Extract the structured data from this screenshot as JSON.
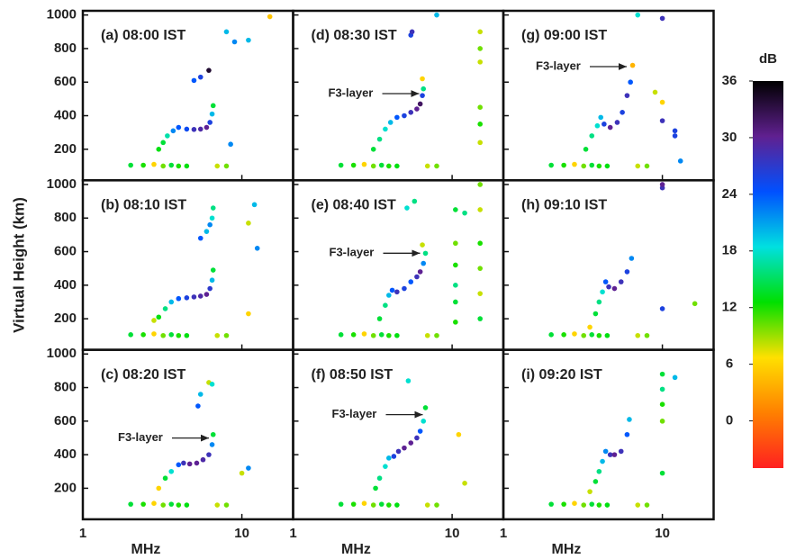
{
  "colorbar": {
    "label": "dB",
    "clim": [
      -5,
      36
    ],
    "ticks": [
      0,
      6,
      12,
      18,
      24,
      30,
      36
    ],
    "colors": [
      "#ff2020",
      "#ff8000",
      "#ffe000",
      "#00e000",
      "#00e0e0",
      "#0050ff",
      "#602090",
      "#000000"
    ]
  },
  "chart_data": [
    {
      "type": "scatter",
      "title": "(a) 08:00 IST",
      "xscale": "log",
      "xlim": [
        1,
        21
      ],
      "xticks": [
        1,
        10
      ],
      "ylim": [
        15,
        1025
      ],
      "yticks": [
        200,
        400,
        600,
        800,
        1000
      ],
      "x": [
        2,
        2.4,
        2.8,
        3.2,
        3.6,
        4,
        4.5,
        7,
        8,
        3,
        3.2,
        3.4,
        3.7,
        4,
        4.5,
        5,
        5.5,
        6,
        6.3,
        6.5,
        6.6,
        5,
        5.5,
        6.2,
        8,
        9,
        11,
        8.5,
        15
      ],
      "y": [
        105,
        105,
        110,
        100,
        105,
        100,
        100,
        100,
        100,
        200,
        240,
        280,
        310,
        330,
        320,
        318,
        320,
        330,
        360,
        410,
        460,
        610,
        630,
        670,
        900,
        840,
        850,
        230,
        990
      ],
      "db": [
        14,
        12,
        6,
        10,
        14,
        12,
        13,
        8,
        10,
        13,
        14,
        17,
        22,
        24,
        25,
        28,
        29,
        30,
        26,
        20,
        14,
        24,
        26,
        34,
        20,
        22,
        20,
        22,
        5
      ]
    },
    {
      "type": "scatter",
      "title": "(b) 08:10 IST",
      "ylabel": "Virtual Height (km)",
      "xscale": "log",
      "xlim": [
        1,
        21
      ],
      "xticks": [
        1,
        10
      ],
      "ylim": [
        15,
        1025
      ],
      "yticks": [
        200,
        400,
        600,
        800,
        1000
      ],
      "x": [
        2,
        2.4,
        2.8,
        3.2,
        3.6,
        4,
        4.5,
        7,
        8,
        2.8,
        3,
        3.3,
        3.6,
        4,
        4.5,
        5,
        5.5,
        6,
        6.3,
        6.5,
        6.6,
        5.5,
        6,
        6.3,
        6.5,
        6.6,
        12,
        12.5,
        11,
        11
      ],
      "y": [
        105,
        105,
        110,
        100,
        105,
        100,
        100,
        100,
        100,
        190,
        210,
        260,
        300,
        320,
        325,
        330,
        335,
        345,
        380,
        430,
        490,
        680,
        720,
        760,
        800,
        860,
        880,
        620,
        770,
        230
      ],
      "db": [
        14,
        12,
        6,
        10,
        14,
        12,
        13,
        8,
        10,
        8,
        13,
        16,
        20,
        24,
        26,
        28,
        29,
        30,
        27,
        20,
        14,
        24,
        20,
        22,
        18,
        16,
        20,
        22,
        8,
        6
      ]
    },
    {
      "type": "scatter",
      "title": "(c) 08:20 IST",
      "annotation": "F3-layer",
      "xlabel": "MHz",
      "xscale": "log",
      "xlim": [
        1,
        21
      ],
      "xticks": [
        1,
        10
      ],
      "ylim": [
        15,
        1025
      ],
      "yticks": [
        200,
        400,
        600,
        800,
        1000
      ],
      "x": [
        2,
        2.4,
        2.8,
        3.2,
        3.6,
        4,
        4.5,
        7,
        8,
        3,
        3.3,
        3.6,
        4,
        4.3,
        4.7,
        5.2,
        5.7,
        6.2,
        6.5,
        6.6,
        5.3,
        5.5,
        6.2,
        6.5,
        10,
        11
      ],
      "y": [
        105,
        105,
        110,
        100,
        105,
        100,
        100,
        100,
        100,
        200,
        260,
        300,
        340,
        350,
        345,
        350,
        370,
        400,
        460,
        520,
        690,
        760,
        830,
        820,
        290,
        320
      ],
      "db": [
        14,
        12,
        6,
        10,
        14,
        12,
        13,
        8,
        10,
        6,
        14,
        18,
        24,
        28,
        30,
        30,
        29,
        28,
        22,
        14,
        24,
        20,
        8,
        18,
        8,
        22
      ]
    },
    {
      "type": "scatter",
      "title": "(d) 08:30 IST",
      "annotation": "F3-layer",
      "xscale": "log",
      "xlim": [
        1,
        21
      ],
      "xticks": [
        1,
        10
      ],
      "ylim": [
        15,
        1025
      ],
      "yticks": [
        200,
        400,
        600,
        800,
        1000
      ],
      "x": [
        2,
        2.4,
        2.8,
        3.2,
        3.6,
        4,
        4.5,
        7,
        8,
        3.2,
        3.5,
        3.8,
        4.1,
        4.5,
        5,
        5.5,
        6,
        6.3,
        6.5,
        6.6,
        5.5,
        5.6,
        6.5,
        15,
        15,
        15,
        15,
        15,
        15,
        8
      ],
      "y": [
        105,
        105,
        110,
        100,
        105,
        100,
        100,
        100,
        100,
        200,
        260,
        320,
        360,
        390,
        400,
        420,
        440,
        470,
        520,
        560,
        880,
        900,
        620,
        900,
        800,
        720,
        450,
        350,
        240,
        1000
      ],
      "db": [
        14,
        12,
        6,
        10,
        14,
        12,
        13,
        8,
        10,
        14,
        16,
        18,
        20,
        24,
        26,
        28,
        30,
        32,
        26,
        16,
        26,
        28,
        6,
        8,
        10,
        8,
        10,
        12,
        8,
        20
      ]
    },
    {
      "type": "scatter",
      "title": "(e) 08:40 IST",
      "annotation": "F3-layer",
      "xscale": "log",
      "xlim": [
        1,
        21
      ],
      "xticks": [
        1,
        10
      ],
      "ylim": [
        15,
        1025
      ],
      "yticks": [
        200,
        400,
        600,
        800,
        1000
      ],
      "x": [
        2,
        2.4,
        2.8,
        3.2,
        3.6,
        4,
        4.5,
        7,
        8,
        3.5,
        3.8,
        4,
        4.2,
        4.5,
        5,
        5.5,
        6,
        6.3,
        6.6,
        6.8,
        5.2,
        5.8,
        6.5,
        10.5,
        10.5,
        10.5,
        10.5,
        10.5,
        10.5,
        15,
        15,
        15,
        15,
        15,
        15,
        12
      ],
      "y": [
        105,
        105,
        110,
        100,
        105,
        100,
        100,
        100,
        100,
        200,
        280,
        340,
        370,
        360,
        380,
        420,
        450,
        480,
        530,
        590,
        860,
        900,
        640,
        850,
        650,
        520,
        400,
        300,
        180,
        1000,
        850,
        650,
        500,
        350,
        200,
        830
      ],
      "db": [
        14,
        12,
        6,
        10,
        14,
        12,
        13,
        8,
        10,
        14,
        16,
        20,
        24,
        28,
        26,
        24,
        28,
        30,
        22,
        16,
        18,
        16,
        8,
        14,
        10,
        12,
        16,
        14,
        12,
        10,
        8,
        12,
        10,
        8,
        14,
        16
      ]
    },
    {
      "type": "scatter",
      "title": "(f) 08:50 IST",
      "annotation": "F3-layer",
      "xlabel": "MHz",
      "xscale": "log",
      "xlim": [
        1,
        21
      ],
      "xticks": [
        1,
        10
      ],
      "ylim": [
        15,
        1025
      ],
      "yticks": [
        200,
        400,
        600,
        800,
        1000
      ],
      "x": [
        2,
        2.4,
        2.8,
        3.2,
        3.6,
        4,
        4.5,
        7,
        8,
        3.3,
        3.5,
        3.8,
        4,
        4.3,
        4.6,
        5,
        5.5,
        6,
        6.3,
        6.6,
        6.8,
        5.3,
        11,
        12
      ],
      "y": [
        105,
        105,
        110,
        100,
        105,
        100,
        100,
        100,
        100,
        200,
        260,
        330,
        380,
        390,
        420,
        440,
        470,
        500,
        540,
        600,
        680,
        840,
        520,
        230
      ],
      "db": [
        14,
        12,
        6,
        10,
        14,
        12,
        13,
        8,
        10,
        14,
        16,
        18,
        20,
        26,
        28,
        30,
        30,
        28,
        24,
        18,
        14,
        18,
        6,
        8
      ]
    },
    {
      "type": "scatter",
      "title": "(g) 09:00 IST",
      "annotation": "F3-layer",
      "xscale": "log",
      "xlim": [
        1,
        21
      ],
      "xticks": [
        1,
        10
      ],
      "ylim": [
        15,
        1025
      ],
      "yticks": [
        200,
        400,
        600,
        800,
        1000
      ],
      "x": [
        2,
        2.4,
        2.8,
        3.2,
        3.6,
        4,
        4.5,
        7,
        8,
        3.3,
        3.6,
        3.9,
        4.1,
        4.3,
        4.7,
        5.2,
        5.6,
        6,
        6.3,
        6.5,
        10,
        7,
        10,
        10,
        12,
        12,
        13,
        9
      ],
      "y": [
        105,
        105,
        110,
        100,
        105,
        100,
        100,
        100,
        100,
        200,
        280,
        340,
        390,
        350,
        330,
        360,
        420,
        520,
        600,
        700,
        980,
        1000,
        480,
        370,
        310,
        280,
        130,
        540
      ],
      "db": [
        14,
        12,
        6,
        10,
        14,
        12,
        13,
        8,
        10,
        14,
        16,
        18,
        20,
        26,
        30,
        28,
        26,
        28,
        24,
        4,
        28,
        18,
        6,
        28,
        26,
        26,
        22,
        8
      ]
    },
    {
      "type": "scatter",
      "title": "(h) 09:10 IST",
      "xscale": "log",
      "xlim": [
        1,
        21
      ],
      "xticks": [
        1,
        10
      ],
      "ylim": [
        15,
        1025
      ],
      "yticks": [
        200,
        400,
        600,
        800,
        1000
      ],
      "x": [
        2,
        2.4,
        2.8,
        3.2,
        3.6,
        4,
        4.5,
        7,
        8,
        3.5,
        3.8,
        4,
        4.2,
        4.4,
        4.6,
        5,
        5.5,
        6,
        6.4,
        10,
        10,
        10,
        16
      ],
      "y": [
        105,
        105,
        110,
        100,
        105,
        100,
        100,
        100,
        100,
        150,
        230,
        300,
        360,
        420,
        390,
        380,
        420,
        480,
        560,
        980,
        260,
        1000,
        290
      ],
      "db": [
        14,
        12,
        6,
        10,
        14,
        12,
        13,
        8,
        10,
        6,
        14,
        16,
        18,
        24,
        28,
        30,
        28,
        26,
        22,
        28,
        26,
        30,
        10
      ]
    },
    {
      "type": "scatter",
      "title": "(i) 09:20 IST",
      "xlabel": "MHz",
      "xscale": "log",
      "xlim": [
        1,
        21
      ],
      "xticks": [
        1,
        10
      ],
      "ylim": [
        15,
        1025
      ],
      "yticks": [
        200,
        400,
        600,
        800,
        1000
      ],
      "x": [
        2,
        2.4,
        2.8,
        3.2,
        3.6,
        4,
        4.5,
        7,
        8,
        3.5,
        3.8,
        4,
        4.2,
        4.4,
        4.7,
        5,
        5.5,
        6,
        6.2,
        10,
        10,
        10,
        10,
        10,
        12
      ],
      "y": [
        105,
        105,
        110,
        100,
        105,
        100,
        100,
        100,
        100,
        180,
        240,
        300,
        360,
        420,
        400,
        400,
        420,
        520,
        610,
        880,
        790,
        700,
        600,
        290,
        860
      ],
      "db": [
        14,
        12,
        6,
        10,
        14,
        12,
        13,
        8,
        10,
        8,
        14,
        16,
        20,
        22,
        28,
        30,
        28,
        24,
        20,
        14,
        16,
        12,
        10,
        14,
        20
      ]
    }
  ]
}
